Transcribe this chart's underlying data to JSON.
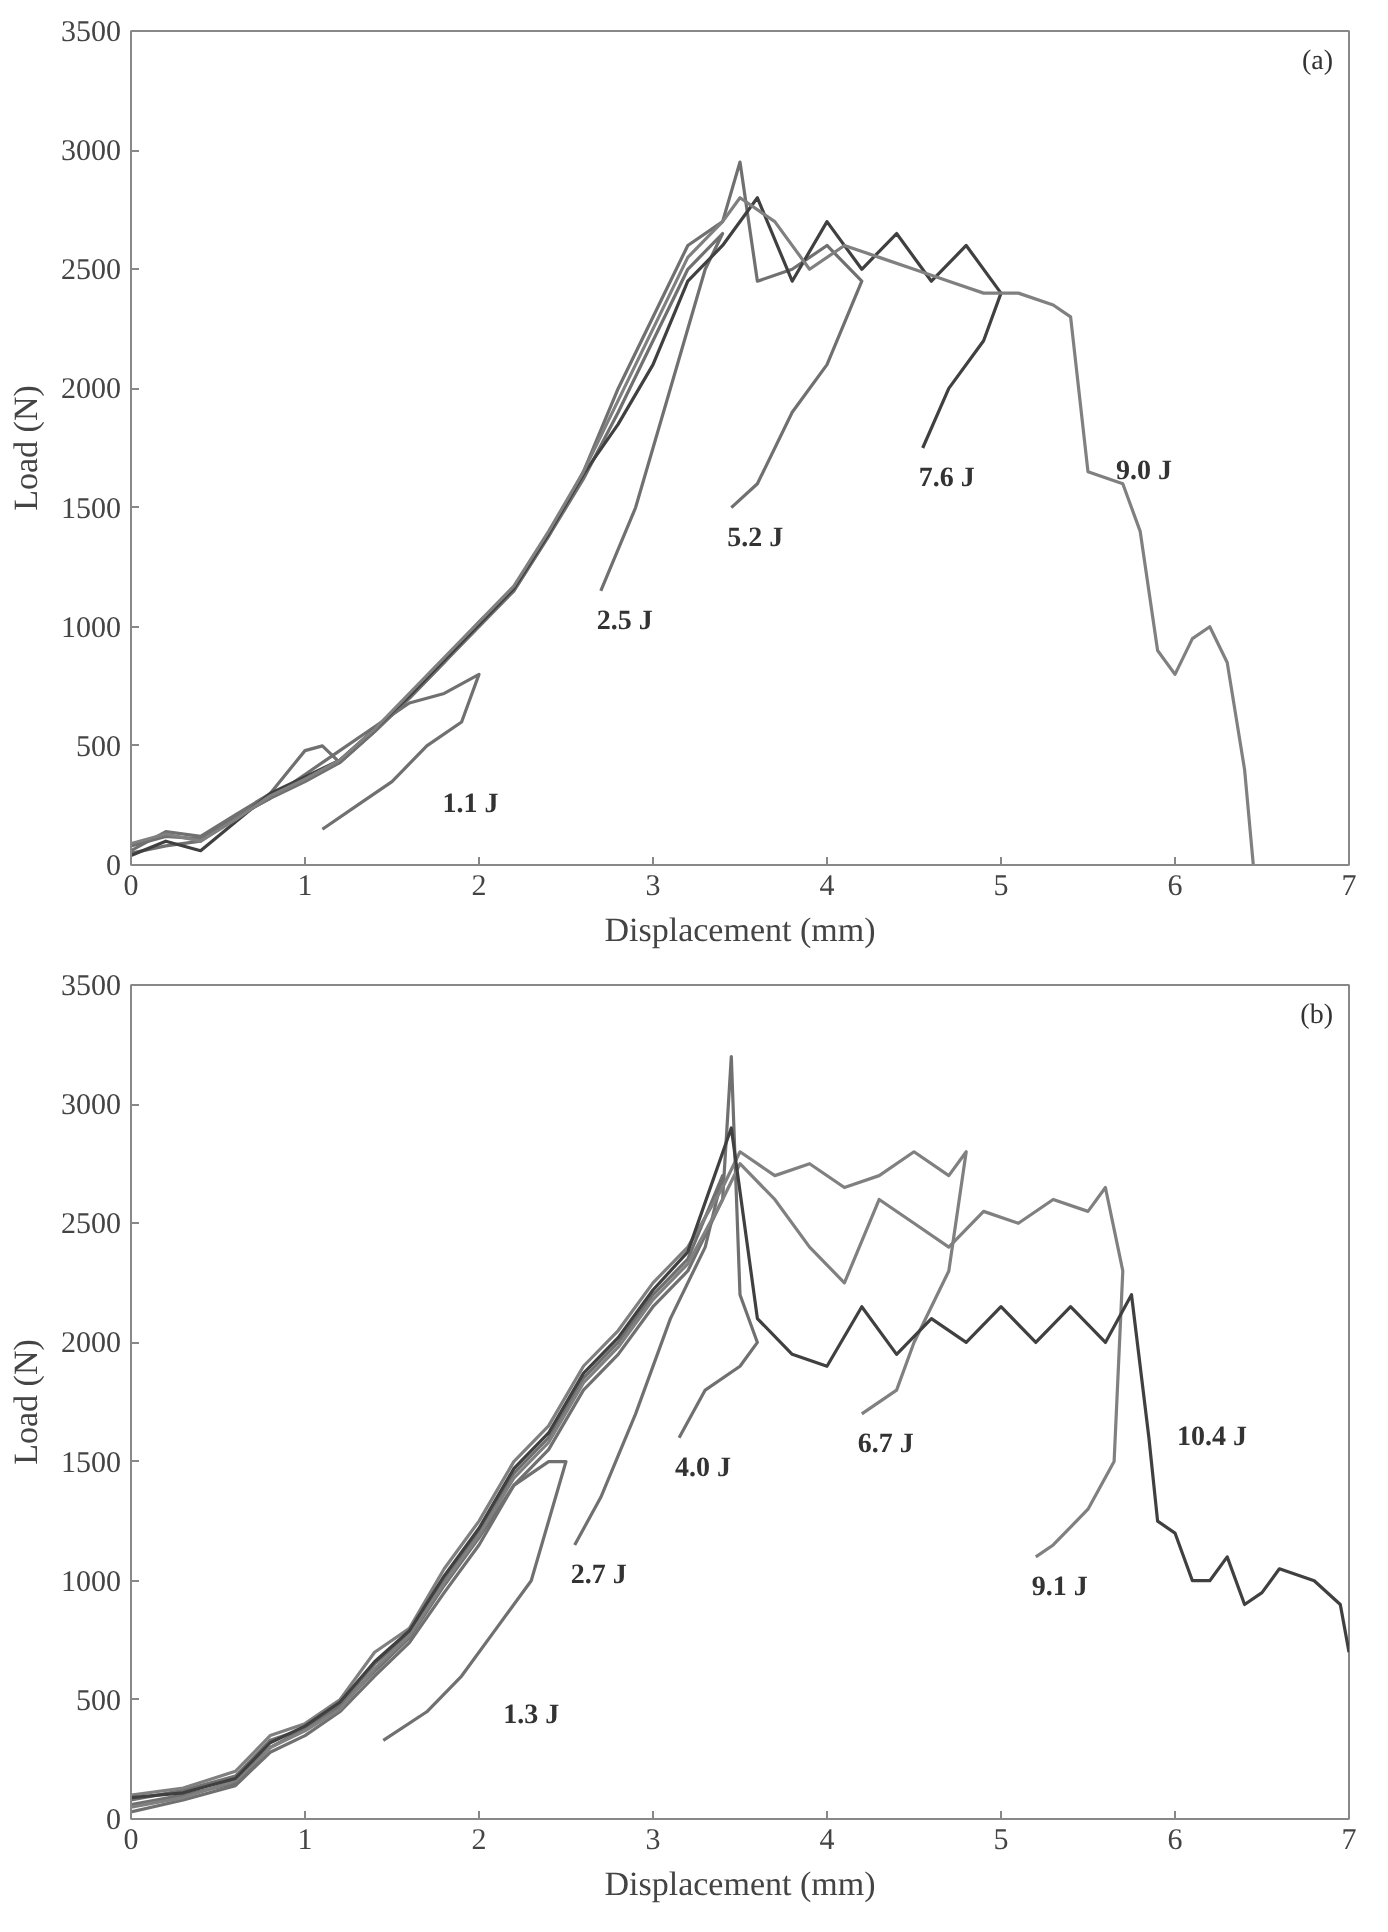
{
  "chart_data": [
    {
      "type": "line",
      "xlabel": "Displacement (mm)",
      "ylabel": "Load (N)",
      "xlim": [
        0,
        7
      ],
      "ylim": [
        0,
        3500
      ],
      "xticks": [
        0,
        1,
        2,
        3,
        4,
        5,
        6,
        7
      ],
      "yticks": [
        0,
        500,
        1000,
        1500,
        2000,
        2500,
        3000,
        3500
      ],
      "annotations": [
        "(a)"
      ],
      "series": [
        {
          "name": "1.1 J",
          "color": "#707070",
          "x": [
            0,
            0.2,
            0.4,
            0.6,
            0.8,
            1.0,
            1.2,
            1.4,
            1.6,
            1.8,
            2.0,
            1.9,
            1.7,
            1.5,
            1.3,
            1.1
          ],
          "values": [
            50,
            80,
            100,
            200,
            280,
            380,
            480,
            580,
            680,
            720,
            800,
            600,
            500,
            350,
            250,
            150
          ]
        },
        {
          "name": "2.5 J",
          "color": "#707070",
          "x": [
            0,
            0.2,
            0.4,
            0.6,
            0.8,
            1.0,
            1.2,
            1.4,
            1.6,
            1.8,
            2.0,
            2.2,
            2.4,
            2.6,
            2.8,
            3.0,
            3.2,
            3.4,
            3.3,
            3.1,
            2.9,
            2.7
          ],
          "values": [
            80,
            120,
            110,
            200,
            280,
            350,
            430,
            560,
            700,
            850,
            1000,
            1150,
            1380,
            1620,
            1900,
            2200,
            2500,
            2650,
            2500,
            2000,
            1500,
            1150
          ]
        },
        {
          "name": "5.2 J",
          "color": "#707070",
          "x": [
            0,
            0.2,
            0.4,
            0.6,
            0.8,
            1.0,
            1.1,
            1.2,
            1.4,
            1.6,
            1.8,
            2.0,
            2.2,
            2.4,
            2.6,
            2.8,
            3.0,
            3.2,
            3.4,
            3.5,
            3.6,
            3.8,
            4.0,
            4.2,
            4.0,
            3.8,
            3.6,
            3.45
          ],
          "values": [
            60,
            140,
            120,
            210,
            300,
            480,
            500,
            430,
            560,
            700,
            850,
            1020,
            1150,
            1380,
            1650,
            2000,
            2300,
            2600,
            2700,
            2950,
            2450,
            2500,
            2600,
            2450,
            2100,
            1900,
            1600,
            1500
          ]
        },
        {
          "name": "7.6 J",
          "color": "#404040",
          "x": [
            0,
            0.2,
            0.4,
            0.6,
            0.8,
            1.0,
            1.2,
            1.4,
            1.6,
            1.8,
            2.0,
            2.2,
            2.4,
            2.6,
            2.8,
            3.0,
            3.2,
            3.4,
            3.6,
            3.8,
            4.0,
            4.2,
            4.4,
            4.6,
            4.8,
            5.0,
            4.9,
            4.7,
            4.55
          ],
          "values": [
            40,
            100,
            60,
            180,
            300,
            370,
            440,
            570,
            710,
            860,
            1010,
            1160,
            1390,
            1640,
            1850,
            2100,
            2450,
            2600,
            2800,
            2450,
            2700,
            2500,
            2650,
            2450,
            2600,
            2400,
            2200,
            2000,
            1750
          ]
        },
        {
          "name": "9.0 J",
          "color": "#808080",
          "x": [
            0,
            0.2,
            0.4,
            0.6,
            0.8,
            1.0,
            1.2,
            1.4,
            1.6,
            1.8,
            2.0,
            2.2,
            2.4,
            2.6,
            2.8,
            3.0,
            3.2,
            3.4,
            3.5,
            3.7,
            3.9,
            4.1,
            4.3,
            4.5,
            4.7,
            4.9,
            5.1,
            5.3,
            5.4,
            5.5,
            5.7,
            5.8,
            5.9,
            6.0,
            6.1,
            6.2,
            6.3,
            6.4,
            6.45
          ],
          "values": [
            90,
            130,
            100,
            190,
            290,
            360,
            440,
            570,
            720,
            870,
            1020,
            1170,
            1400,
            1650,
            1950,
            2250,
            2550,
            2700,
            2800,
            2700,
            2500,
            2600,
            2550,
            2500,
            2450,
            2400,
            2400,
            2350,
            2300,
            1650,
            1600,
            1400,
            900,
            800,
            950,
            1000,
            850,
            400,
            0
          ]
        }
      ]
    },
    {
      "type": "line",
      "xlabel": "Displacement (mm)",
      "ylabel": "Load (N)",
      "xlim": [
        0,
        7
      ],
      "ylim": [
        0,
        3500
      ],
      "xticks": [
        0,
        1,
        2,
        3,
        4,
        5,
        6,
        7
      ],
      "yticks": [
        0,
        500,
        1000,
        1500,
        2000,
        2500,
        3000,
        3500
      ],
      "annotations": [
        "(b)"
      ],
      "series": [
        {
          "name": "1.3 J",
          "color": "#707070",
          "x": [
            0,
            0.3,
            0.6,
            0.8,
            1.0,
            1.2,
            1.4,
            1.6,
            1.8,
            2.0,
            2.2,
            2.4,
            2.5,
            2.3,
            2.1,
            1.9,
            1.7,
            1.45
          ],
          "values": [
            60,
            100,
            150,
            300,
            380,
            470,
            620,
            760,
            980,
            1180,
            1400,
            1500,
            1500,
            1000,
            800,
            600,
            450,
            330
          ]
        },
        {
          "name": "2.7 J",
          "color": "#707070",
          "x": [
            0,
            0.3,
            0.6,
            0.8,
            1.0,
            1.2,
            1.4,
            1.6,
            1.8,
            2.0,
            2.2,
            2.4,
            2.6,
            2.8,
            3.0,
            3.2,
            3.4,
            3.3,
            3.1,
            2.9,
            2.7,
            2.55
          ],
          "values": [
            80,
            120,
            180,
            330,
            380,
            480,
            650,
            780,
            1000,
            1200,
            1450,
            1600,
            1850,
            2000,
            2200,
            2350,
            2700,
            2400,
            2100,
            1700,
            1350,
            1150
          ]
        },
        {
          "name": "4.0 J",
          "color": "#707070",
          "x": [
            0,
            0.3,
            0.6,
            0.8,
            1.0,
            1.2,
            1.4,
            1.6,
            1.8,
            2.0,
            2.2,
            2.4,
            2.6,
            2.8,
            3.0,
            3.2,
            3.4,
            3.45,
            3.5,
            3.6,
            3.5,
            3.3,
            3.15
          ],
          "values": [
            30,
            80,
            140,
            280,
            350,
            450,
            600,
            740,
            950,
            1150,
            1400,
            1550,
            1800,
            1950,
            2150,
            2300,
            2600,
            3200,
            2200,
            2000,
            1900,
            1800,
            1600
          ]
        },
        {
          "name": "6.7 J",
          "color": "#808080",
          "x": [
            0,
            0.3,
            0.6,
            0.8,
            1.0,
            1.2,
            1.4,
            1.6,
            1.8,
            2.0,
            2.2,
            2.4,
            2.6,
            2.8,
            3.0,
            3.2,
            3.4,
            3.5,
            3.7,
            3.9,
            4.1,
            4.3,
            4.5,
            4.7,
            4.8,
            4.7,
            4.5,
            4.4,
            4.2
          ],
          "values": [
            100,
            130,
            200,
            350,
            400,
            500,
            700,
            800,
            1050,
            1250,
            1500,
            1650,
            1900,
            2050,
            2250,
            2400,
            2650,
            2800,
            2700,
            2750,
            2650,
            2700,
            2800,
            2700,
            2800,
            2300,
            2000,
            1800,
            1700
          ]
        },
        {
          "name": "9.1 J",
          "color": "#808080",
          "x": [
            0,
            0.3,
            0.6,
            0.8,
            1.0,
            1.2,
            1.4,
            1.6,
            1.8,
            2.0,
            2.2,
            2.4,
            2.6,
            2.8,
            3.0,
            3.2,
            3.4,
            3.5,
            3.7,
            3.9,
            4.1,
            4.3,
            4.5,
            4.7,
            4.9,
            5.1,
            5.3,
            5.5,
            5.6,
            5.7,
            5.65,
            5.5,
            5.3,
            5.2
          ],
          "values": [
            50,
            90,
            160,
            300,
            370,
            460,
            630,
            770,
            990,
            1190,
            1430,
            1580,
            1830,
            1980,
            2180,
            2330,
            2600,
            2750,
            2600,
            2400,
            2250,
            2600,
            2500,
            2400,
            2550,
            2500,
            2600,
            2550,
            2650,
            2300,
            1500,
            1300,
            1150,
            1100
          ]
        },
        {
          "name": "10.4 J",
          "color": "#404040",
          "x": [
            0,
            0.3,
            0.6,
            0.8,
            1.0,
            1.2,
            1.4,
            1.6,
            1.8,
            2.0,
            2.2,
            2.4,
            2.6,
            2.8,
            3.0,
            3.2,
            3.45,
            3.6,
            3.8,
            4.0,
            4.2,
            4.4,
            4.6,
            4.8,
            5.0,
            5.2,
            5.4,
            5.6,
            5.75,
            5.85,
            5.9,
            6.0,
            6.1,
            6.2,
            6.3,
            6.4,
            6.5,
            6.6,
            6.8,
            6.95,
            7.0
          ],
          "values": [
            90,
            110,
            170,
            320,
            390,
            490,
            660,
            790,
            1020,
            1220,
            1470,
            1620,
            1870,
            2020,
            2220,
            2380,
            2900,
            2100,
            1950,
            1900,
            2150,
            1950,
            2100,
            2000,
            2150,
            2000,
            2150,
            2000,
            2200,
            1600,
            1250,
            1200,
            1000,
            1000,
            1100,
            900,
            950,
            1050,
            1000,
            900,
            700
          ]
        }
      ]
    }
  ]
}
